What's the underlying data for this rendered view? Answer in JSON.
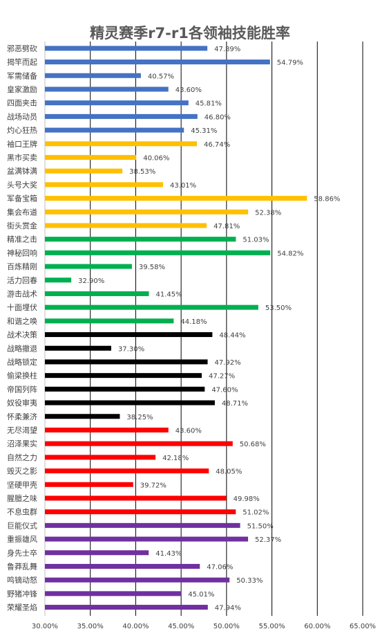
{
  "chart_data": {
    "type": "bar",
    "orientation": "horizontal",
    "title": "精灵赛季r7-r1各领袖技能胜率",
    "xlim": [
      30,
      65
    ],
    "xticks": [
      "30.00%",
      "35.00%",
      "40.00%",
      "45.00%",
      "50.00%",
      "55.00%",
      "60.00%",
      "65.00%"
    ],
    "grid": true,
    "categories": [
      "邪恶劈砍",
      "揭竿而起",
      "军需储备",
      "皇家激励",
      "四面夹击",
      "战场动员",
      "灼心狂热",
      "袖口王牌",
      "黑市买卖",
      "盆满钵满",
      "头号大奖",
      "军备宝箱",
      "集会布道",
      "街头赏金",
      "精准之击",
      "神秘回响",
      "百炼精刚",
      "活力回春",
      "游击战术",
      "十面埋伏",
      "和谐之唤",
      "战术决策",
      "战略撤退",
      "战略锁定",
      "偷梁换柱",
      "帝国列阵",
      "奴役审夷",
      "怀柔兼济",
      "无尽渴望",
      "沼泽果实",
      "自然之力",
      "毁灭之影",
      "坚硬甲壳",
      "腥膻之味",
      "不息虫群",
      "巨能仪式",
      "重振雄风",
      "身先士卒",
      "鲁莽乱舞",
      "鸣镝动怒",
      "野猪冲锋",
      "荣耀圣焰"
    ],
    "values": [
      47.89,
      54.79,
      40.57,
      43.6,
      45.81,
      46.8,
      45.31,
      46.74,
      40.06,
      38.53,
      43.01,
      58.86,
      52.38,
      47.81,
      51.03,
      54.82,
      39.58,
      32.9,
      41.45,
      53.5,
      44.18,
      48.44,
      37.3,
      47.92,
      47.27,
      47.6,
      48.71,
      38.25,
      43.6,
      50.68,
      42.18,
      48.05,
      39.72,
      49.98,
      51.02,
      51.5,
      52.37,
      41.43,
      47.06,
      50.33,
      45.01,
      47.94
    ],
    "value_labels": [
      "47.89%",
      "54.79%",
      "40.57%",
      "43.60%",
      "45.81%",
      "46.80%",
      "45.31%",
      "46.74%",
      "40.06%",
      "38.53%",
      "43.01%",
      "58.86%",
      "52.38%",
      "47.81%",
      "51.03%",
      "54.82%",
      "39.58%",
      "32.90%",
      "41.45%",
      "53.50%",
      "44.18%",
      "48.44%",
      "37.30%",
      "47.92%",
      "47.27%",
      "47.60%",
      "48.71%",
      "38.25%",
      "43.60%",
      "50.68%",
      "42.18%",
      "48.05%",
      "39.72%",
      "49.98%",
      "51.02%",
      "51.50%",
      "52.37%",
      "41.43%",
      "47.06%",
      "50.33%",
      "45.01%",
      "47.94%"
    ],
    "colors": [
      "#4472c4",
      "#4472c4",
      "#4472c4",
      "#4472c4",
      "#4472c4",
      "#4472c4",
      "#4472c4",
      "#ffc000",
      "#ffc000",
      "#ffc000",
      "#ffc000",
      "#ffc000",
      "#ffc000",
      "#ffc000",
      "#00b050",
      "#00b050",
      "#00b050",
      "#00b050",
      "#00b050",
      "#00b050",
      "#00b050",
      "#000000",
      "#000000",
      "#000000",
      "#000000",
      "#000000",
      "#000000",
      "#000000",
      "#ff0000",
      "#ff0000",
      "#ff0000",
      "#ff0000",
      "#ff0000",
      "#ff0000",
      "#ff0000",
      "#7030a0",
      "#7030a0",
      "#7030a0",
      "#7030a0",
      "#7030a0",
      "#7030a0",
      "#7030a0"
    ]
  }
}
